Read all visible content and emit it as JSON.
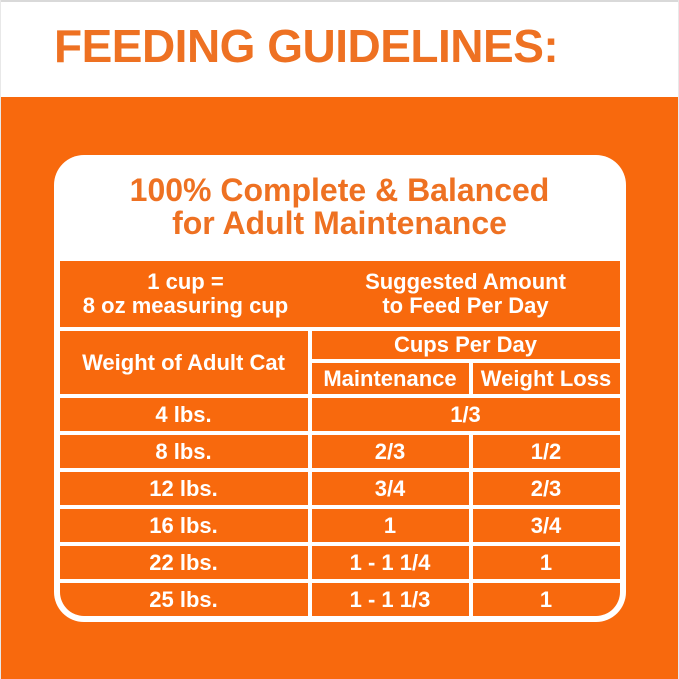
{
  "page": {
    "heading": "FEEDING GUIDELINES:"
  },
  "card": {
    "title_line1": "100% Complete & Balanced",
    "title_line2": "for Adult Maintenance"
  },
  "table": {
    "cup_note_line1": "1 cup =",
    "cup_note_line2": "8 oz measuring cup",
    "suggested_line1": "Suggested Amount",
    "suggested_line2": "to Feed Per Day",
    "weight_header": "Weight of Adult Cat",
    "cups_per_day_header": "Cups Per Day",
    "maintenance_header": "Maintenance",
    "weight_loss_header": "Weight Loss",
    "rows": [
      {
        "weight": "4 lbs.",
        "maintenance": "1/3",
        "weight_loss": "",
        "spans_both_columns": true
      },
      {
        "weight": "8 lbs.",
        "maintenance": "2/3",
        "weight_loss": "1/2"
      },
      {
        "weight": "12 lbs.",
        "maintenance": "3/4",
        "weight_loss": "2/3"
      },
      {
        "weight": "16 lbs.",
        "maintenance": "1",
        "weight_loss": "3/4"
      },
      {
        "weight": "22 lbs.",
        "maintenance": "1 - 1 1/4",
        "weight_loss": "1"
      },
      {
        "weight": "25 lbs.",
        "maintenance": "1 - 1 1/3",
        "weight_loss": "1"
      }
    ]
  },
  "colors": {
    "background_orange": "#f8690d",
    "heading_orange": "#ee7122",
    "table_text_white": "#ffffff",
    "top_edge_gray": "#d9d9d9"
  }
}
